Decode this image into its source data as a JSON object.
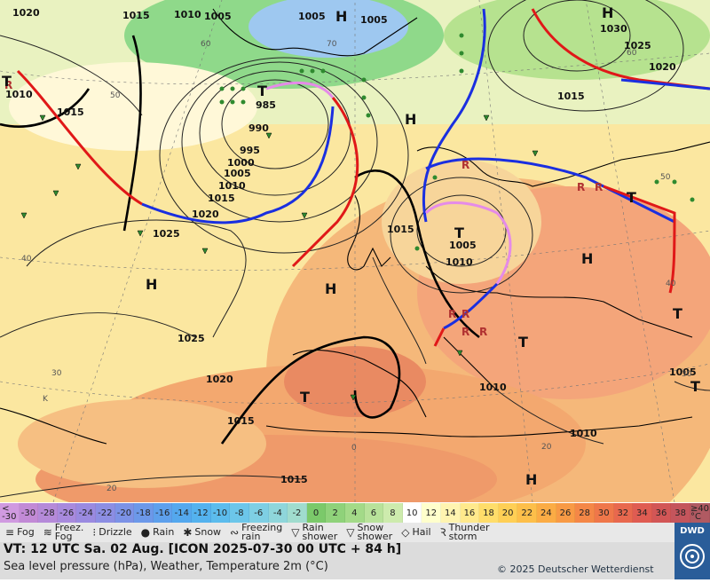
{
  "map": {
    "isobars": [
      "1020",
      "1015",
      "1010",
      "1005",
      "1005",
      "1005",
      "1015",
      "1015",
      "1010",
      "985",
      "990",
      "995",
      "1000",
      "1005",
      "1010",
      "1015",
      "1020",
      "1025",
      "1015",
      "1005",
      "1010",
      "1025",
      "1020",
      "1015",
      "1030",
      "1025",
      "1020",
      "1015",
      "1010",
      "1010",
      "1005"
    ],
    "lat_labels": [
      "60",
      "50",
      "40",
      "30",
      "20",
      "K",
      "0",
      "70",
      "60",
      "50",
      "40",
      "30",
      "20"
    ],
    "pressure_centers": [
      "H",
      "H",
      "H",
      "H",
      "H",
      "H",
      "H",
      "T",
      "T",
      "T",
      "T",
      "T",
      "T",
      "T",
      "T"
    ],
    "front_colors": {
      "warm": "#e01818",
      "cold": "#1a2fe0",
      "occluded": "#e58be8"
    }
  },
  "scale": {
    "cells": [
      "<\n-30",
      "-30",
      "-28",
      "-26",
      "-24",
      "-22",
      "-20",
      "-18",
      "-16",
      "-14",
      "-12",
      "-10",
      "-8",
      "-6",
      "-4",
      "-2",
      "0",
      "2",
      "4",
      "6",
      "8",
      "10",
      "12",
      "14",
      "16",
      "18",
      "20",
      "22",
      "24",
      "26",
      "28",
      "30",
      "32",
      "34",
      "36",
      "38",
      "≥40\n°C"
    ],
    "colors": [
      "#d09ae0",
      "#c28ad6",
      "#b58ad9",
      "#a88add",
      "#9a8ae0",
      "#8c8ee3",
      "#7c92e6",
      "#6c98e9",
      "#5ea0ec",
      "#54a8ee",
      "#54b2ee",
      "#5cbced",
      "#6cc6ea",
      "#7ecfe4",
      "#8fd6db",
      "#a0dcce",
      "#7bc96a",
      "#8fd27a",
      "#a3da88",
      "#b8e29a",
      "#cdebad",
      "#ffffff",
      "#ffffcc",
      "#fff4b0",
      "#ffe98c",
      "#ffdd6a",
      "#ffcf55",
      "#fdbf4a",
      "#fbac45",
      "#f89a45",
      "#f48747",
      "#ef774a",
      "#e8684e",
      "#df5c52",
      "#d25656",
      "#c4555c",
      "#b05a62"
    ]
  },
  "legend": {
    "items": [
      {
        "icon": "fog-icon",
        "glyph": "≡",
        "label": "Fog"
      },
      {
        "icon": "freezing-fog-icon",
        "glyph": "≋",
        "label": "Freez.\nFog"
      },
      {
        "icon": "drizzle-icon",
        "glyph": "⁝",
        "label": "Drizzle"
      },
      {
        "icon": "rain-icon",
        "glyph": "●",
        "label": "Rain"
      },
      {
        "icon": "snow-icon",
        "glyph": "✱",
        "label": "Snow"
      },
      {
        "icon": "freezing-rain-icon",
        "glyph": "∾",
        "label": "Freezing\nrain"
      },
      {
        "icon": "rain-shower-icon",
        "glyph": "▽",
        "label": "Rain\nshower"
      },
      {
        "icon": "snow-shower-icon",
        "glyph": "▽",
        "label": "Snow\nshower"
      },
      {
        "icon": "hail-icon",
        "glyph": "◇",
        "label": "Hail"
      },
      {
        "icon": "thunderstorm-icon",
        "glyph": "Ꝛ",
        "label": "Thunder\nstorm"
      }
    ]
  },
  "info": {
    "valid_time": "VT: 12 UTC Sa.  02 Aug. [ICON 2025-07-30  00 UTC + 84 h]",
    "subtitle": "Sea level pressure (hPa), Weather, Temperature 2m (°C)",
    "copyright": "© 2025 Deutscher Wetterdienst",
    "logo_text": "DWD"
  }
}
